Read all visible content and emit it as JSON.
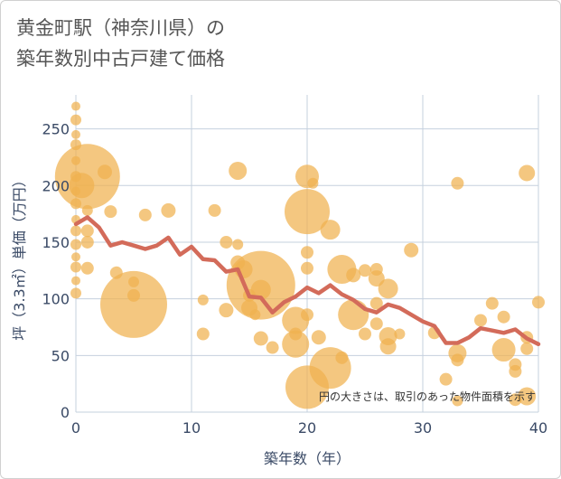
{
  "title_line1": "黄金町駅（神奈川県）の",
  "title_line2": "築年数別中古戸建て価格",
  "chart_data": {
    "type": "scatter",
    "xlabel": "築年数（年）",
    "ylabel": "坪（3.3㎡）単価（万円）",
    "xlim": [
      0,
      40
    ],
    "ylim": [
      0,
      280
    ],
    "x_ticks": [
      0,
      10,
      20,
      30,
      40
    ],
    "y_ticks": [
      0,
      50,
      100,
      150,
      200,
      250
    ],
    "grid": true,
    "note": "円の大きさは、取引のあった物件面積を示す",
    "bubble_color": "#f0b24f",
    "line_color": "#d36b5a",
    "bubbles": [
      {
        "x": 0,
        "y": 270,
        "s": 5
      },
      {
        "x": 0,
        "y": 258,
        "s": 6
      },
      {
        "x": 0,
        "y": 245,
        "s": 5
      },
      {
        "x": 0,
        "y": 236,
        "s": 6
      },
      {
        "x": 0,
        "y": 222,
        "s": 5
      },
      {
        "x": 0,
        "y": 208,
        "s": 6
      },
      {
        "x": 0,
        "y": 195,
        "s": 5
      },
      {
        "x": 0,
        "y": 184,
        "s": 6
      },
      {
        "x": 0,
        "y": 170,
        "s": 5
      },
      {
        "x": 0,
        "y": 160,
        "s": 6
      },
      {
        "x": 0,
        "y": 148,
        "s": 6
      },
      {
        "x": 0,
        "y": 137,
        "s": 5
      },
      {
        "x": 0,
        "y": 128,
        "s": 6
      },
      {
        "x": 0,
        "y": 116,
        "s": 5
      },
      {
        "x": 0,
        "y": 105,
        "s": 6
      },
      {
        "x": 1,
        "y": 208,
        "s": 36
      },
      {
        "x": 0.5,
        "y": 200,
        "s": 14
      },
      {
        "x": 1,
        "y": 178,
        "s": 6
      },
      {
        "x": 1,
        "y": 160,
        "s": 7
      },
      {
        "x": 1,
        "y": 150,
        "s": 7
      },
      {
        "x": 1,
        "y": 127,
        "s": 7
      },
      {
        "x": 2.5,
        "y": 212,
        "s": 8
      },
      {
        "x": 3,
        "y": 177,
        "s": 7
      },
      {
        "x": 3.5,
        "y": 123,
        "s": 7
      },
      {
        "x": 5,
        "y": 95,
        "s": 37
      },
      {
        "x": 5,
        "y": 103,
        "s": 7
      },
      {
        "x": 5,
        "y": 115,
        "s": 6
      },
      {
        "x": 6,
        "y": 174,
        "s": 7
      },
      {
        "x": 8,
        "y": 178,
        "s": 8
      },
      {
        "x": 11,
        "y": 99,
        "s": 6
      },
      {
        "x": 11,
        "y": 69,
        "s": 7
      },
      {
        "x": 12,
        "y": 178,
        "s": 7
      },
      {
        "x": 13,
        "y": 150,
        "s": 7
      },
      {
        "x": 13,
        "y": 90,
        "s": 8
      },
      {
        "x": 14,
        "y": 213,
        "s": 10
      },
      {
        "x": 14,
        "y": 148,
        "s": 6
      },
      {
        "x": 14,
        "y": 132,
        "s": 8
      },
      {
        "x": 14.5,
        "y": 126,
        "s": 10
      },
      {
        "x": 15,
        "y": 92,
        "s": 9
      },
      {
        "x": 15,
        "y": 103,
        "s": 7
      },
      {
        "x": 15.5,
        "y": 86,
        "s": 6
      },
      {
        "x": 16,
        "y": 112,
        "s": 38
      },
      {
        "x": 16,
        "y": 108,
        "s": 11
      },
      {
        "x": 16,
        "y": 65,
        "s": 8
      },
      {
        "x": 17,
        "y": 57,
        "s": 7
      },
      {
        "x": 19,
        "y": 81,
        "s": 15
      },
      {
        "x": 19,
        "y": 69,
        "s": 7
      },
      {
        "x": 19,
        "y": 60,
        "s": 15
      },
      {
        "x": 20,
        "y": 208,
        "s": 13
      },
      {
        "x": 20,
        "y": 177,
        "s": 25
      },
      {
        "x": 20,
        "y": 141,
        "s": 7
      },
      {
        "x": 20,
        "y": 127,
        "s": 7
      },
      {
        "x": 20,
        "y": 86,
        "s": 7
      },
      {
        "x": 20,
        "y": 22,
        "s": 24
      },
      {
        "x": 20.5,
        "y": 202,
        "s": 6
      },
      {
        "x": 21,
        "y": 66,
        "s": 8
      },
      {
        "x": 22,
        "y": 161,
        "s": 11
      },
      {
        "x": 22,
        "y": 39,
        "s": 23
      },
      {
        "x": 23,
        "y": 126,
        "s": 16
      },
      {
        "x": 23,
        "y": 48,
        "s": 7
      },
      {
        "x": 24,
        "y": 121,
        "s": 8
      },
      {
        "x": 24,
        "y": 86,
        "s": 17
      },
      {
        "x": 25,
        "y": 125,
        "s": 7
      },
      {
        "x": 25,
        "y": 69,
        "s": 7
      },
      {
        "x": 26,
        "y": 126,
        "s": 7
      },
      {
        "x": 26,
        "y": 118,
        "s": 9
      },
      {
        "x": 26,
        "y": 96,
        "s": 7
      },
      {
        "x": 26,
        "y": 78,
        "s": 7
      },
      {
        "x": 27,
        "y": 109,
        "s": 11
      },
      {
        "x": 27,
        "y": 67,
        "s": 10
      },
      {
        "x": 27,
        "y": 58,
        "s": 9
      },
      {
        "x": 28,
        "y": 69,
        "s": 6
      },
      {
        "x": 29,
        "y": 143,
        "s": 8
      },
      {
        "x": 31,
        "y": 70,
        "s": 7
      },
      {
        "x": 32,
        "y": 29,
        "s": 7
      },
      {
        "x": 33,
        "y": 202,
        "s": 7
      },
      {
        "x": 33,
        "y": 52,
        "s": 10
      },
      {
        "x": 33,
        "y": 46,
        "s": 7
      },
      {
        "x": 33,
        "y": 10,
        "s": 6
      },
      {
        "x": 35,
        "y": 81,
        "s": 7
      },
      {
        "x": 36,
        "y": 96,
        "s": 7
      },
      {
        "x": 37,
        "y": 55,
        "s": 13
      },
      {
        "x": 37,
        "y": 84,
        "s": 7
      },
      {
        "x": 38,
        "y": 42,
        "s": 7
      },
      {
        "x": 38,
        "y": 36,
        "s": 7
      },
      {
        "x": 38,
        "y": 11,
        "s": 7
      },
      {
        "x": 39,
        "y": 211,
        "s": 9
      },
      {
        "x": 39,
        "y": 66,
        "s": 7
      },
      {
        "x": 39,
        "y": 56,
        "s": 7
      },
      {
        "x": 39,
        "y": 14,
        "s": 10
      },
      {
        "x": 40,
        "y": 97,
        "s": 7
      }
    ],
    "line": {
      "x": [
        0,
        1,
        2,
        3,
        4,
        5,
        6,
        7,
        8,
        9,
        10,
        11,
        12,
        13,
        14,
        15,
        16,
        17,
        18,
        19,
        20,
        21,
        22,
        23,
        24,
        25,
        26,
        27,
        28,
        29,
        30,
        31,
        32,
        33,
        34,
        35,
        36,
        37,
        38,
        39,
        40
      ],
      "y": [
        166,
        172,
        163,
        147,
        150,
        147,
        144,
        147,
        154,
        139,
        146,
        135,
        134,
        124,
        126,
        102,
        101,
        88,
        97,
        102,
        110,
        105,
        112,
        104,
        99,
        91,
        88,
        95,
        92,
        86,
        80,
        76,
        61,
        61,
        66,
        74,
        72,
        70,
        73,
        65,
        60
      ]
    }
  }
}
